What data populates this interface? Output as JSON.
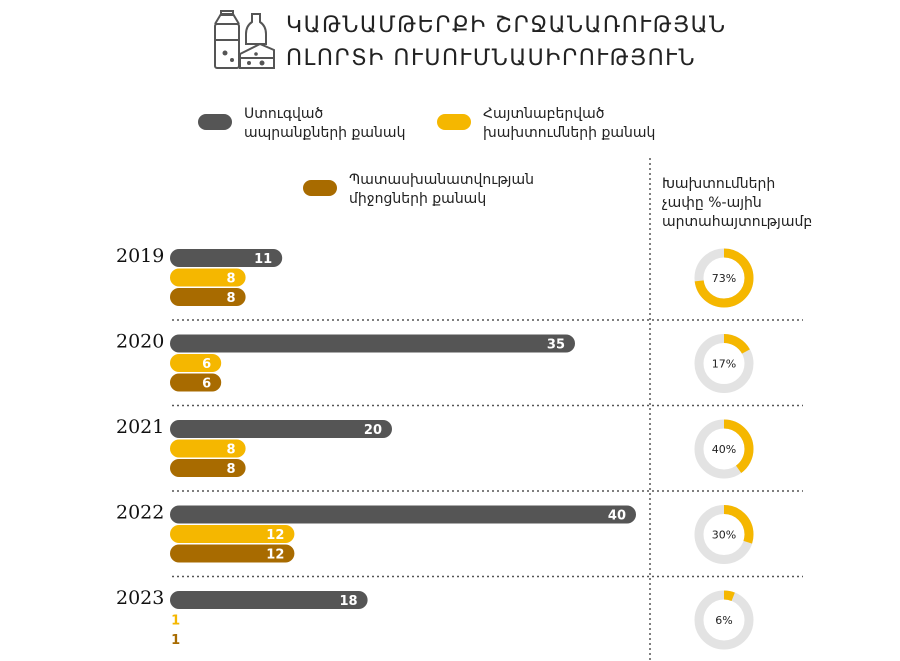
{
  "title": {
    "line1": "ԿԱԹՆԱՄԹԵՐՔԻ ՇՐՋԱՆԱՌՈՒԹՅԱՆ",
    "line2": "ՈԼՈՐՏԻ ՈՒՍՈՒՄՆԱՍԻՐՈՒԹՅՈՒՆ",
    "icon": "dairy-products-icon"
  },
  "legend": {
    "checked": {
      "line1": "Ստուգված",
      "line2": "ապրանքների քանակ",
      "color": "#555555"
    },
    "violations": {
      "line1": "Հայտնաբերված",
      "line2": "խախտումների քանակ",
      "color": "#F5B700"
    },
    "responsible": {
      "line1": "Պատասխանատվության",
      "line2": "միջոցների քանակ",
      "color": "#A86B00"
    }
  },
  "percent_header": {
    "line1": "Խախտումների",
    "line2": "չափը %-ային",
    "line3": "արտահայտությամբ"
  },
  "chart_data": {
    "type": "bar",
    "orientation": "horizontal",
    "categories": [
      "2019",
      "2020",
      "2021",
      "2022",
      "2023"
    ],
    "series": [
      {
        "name": "Ստուգված ապրանքների քանակ",
        "values": [
          11,
          35,
          20,
          40,
          18
        ],
        "color": "#555555"
      },
      {
        "name": "Հայտնաբերված խախտումների քանակ",
        "values": [
          8,
          6,
          8,
          12,
          1
        ],
        "color": "#F5B700"
      },
      {
        "name": "Պատասխանատվության միջոցների քանակ",
        "values": [
          8,
          6,
          8,
          12,
          1
        ],
        "color": "#A86B00"
      }
    ],
    "violation_percent": [
      73,
      17,
      40,
      30,
      6
    ],
    "percent_labels": [
      "73%",
      "17%",
      "40%",
      "30%",
      "6%"
    ],
    "donut_colors": {
      "filled": "#F5B700",
      "track": "#E3E3E3"
    },
    "legend_position": "top",
    "grid": false
  }
}
